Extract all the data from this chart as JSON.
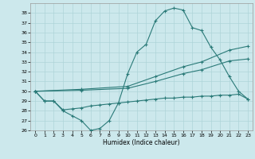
{
  "xlabel": "Humidex (Indice chaleur)",
  "xlim": [
    -0.5,
    23.5
  ],
  "ylim": [
    26,
    39
  ],
  "yticks": [
    26,
    27,
    28,
    29,
    30,
    31,
    32,
    33,
    34,
    35,
    36,
    37,
    38
  ],
  "xticks": [
    0,
    1,
    2,
    3,
    4,
    5,
    6,
    7,
    8,
    9,
    10,
    11,
    12,
    13,
    14,
    15,
    16,
    17,
    18,
    19,
    20,
    21,
    22,
    23
  ],
  "bg_color": "#cce8ec",
  "line_color": "#2a7a78",
  "grid_color": "#aed4d8",
  "series_main_x": [
    0,
    1,
    2,
    3,
    4,
    5,
    6,
    7,
    8,
    9,
    10,
    11,
    12,
    13,
    14,
    15,
    16,
    17,
    18,
    19,
    20,
    21,
    22,
    23
  ],
  "series_main_y": [
    30,
    29,
    29,
    28,
    27.5,
    27,
    26,
    26.2,
    27,
    28.8,
    31.8,
    34.0,
    34.8,
    37.2,
    38.2,
    38.5,
    38.3,
    36.5,
    36.2,
    34.5,
    33.2,
    31.5,
    30.0,
    29.2
  ],
  "series_diag1_x": [
    0,
    5,
    10,
    13,
    16,
    18,
    21,
    23
  ],
  "series_diag1_y": [
    30,
    30.2,
    30.5,
    31.5,
    32.5,
    33.0,
    34.2,
    34.6
  ],
  "series_diag2_x": [
    0,
    5,
    10,
    13,
    16,
    18,
    21,
    23
  ],
  "series_diag2_y": [
    30,
    30.1,
    30.3,
    31.0,
    31.8,
    32.2,
    33.1,
    33.3
  ],
  "series_flat_x": [
    0,
    1,
    2,
    3,
    4,
    5,
    6,
    7,
    8,
    9,
    10,
    11,
    12,
    13,
    14,
    15,
    16,
    17,
    18,
    19,
    20,
    21,
    22,
    23
  ],
  "series_flat_y": [
    30,
    29,
    29,
    28.1,
    28.2,
    28.3,
    28.5,
    28.6,
    28.7,
    28.8,
    28.9,
    29.0,
    29.1,
    29.2,
    29.3,
    29.3,
    29.4,
    29.4,
    29.5,
    29.5,
    29.6,
    29.6,
    29.7,
    29.2
  ]
}
